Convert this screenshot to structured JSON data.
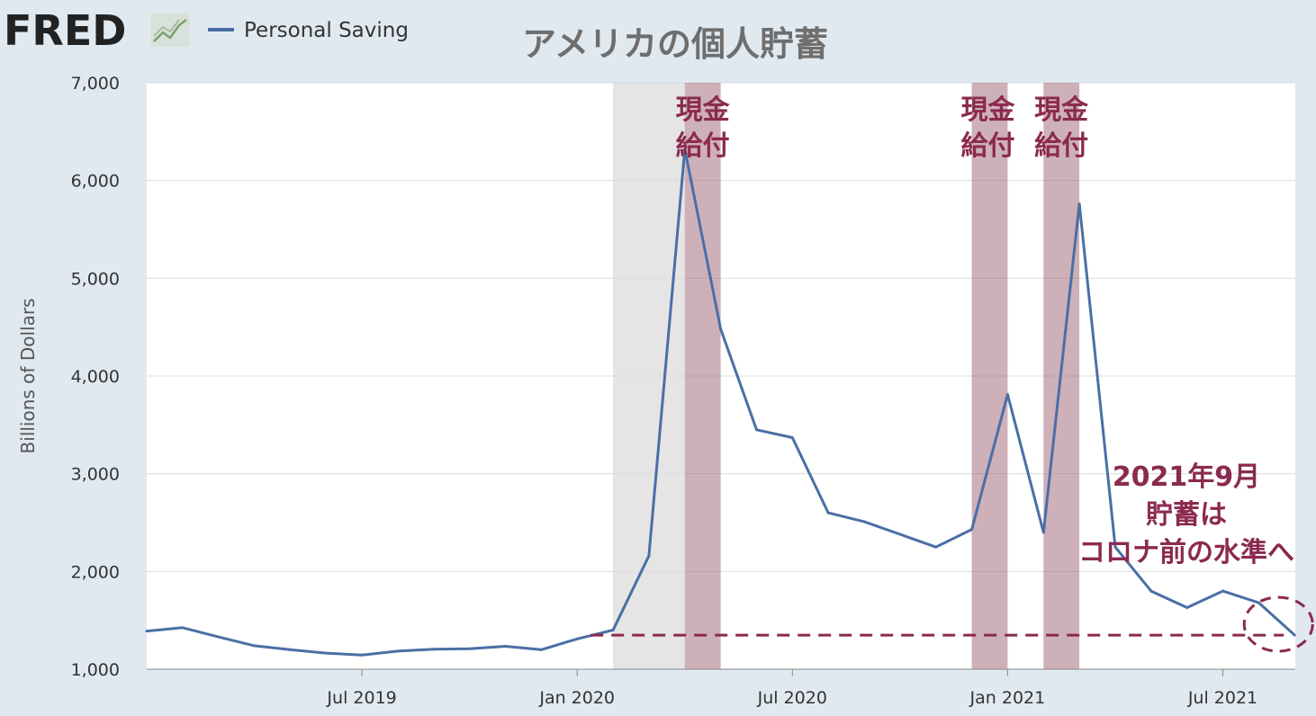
{
  "logo": {
    "text": "FRED"
  },
  "legend": {
    "label": "Personal Saving",
    "color": "#4a6fa5"
  },
  "chart_data": {
    "type": "line",
    "title": "アメリカの個人貯蓄",
    "ylabel": "Billions of Dollars",
    "ylim": [
      1000,
      7000
    ],
    "yticks": [
      1000,
      2000,
      3000,
      4000,
      5000,
      6000,
      7000
    ],
    "ytick_labels": [
      "1,000",
      "2,000",
      "3,000",
      "4,000",
      "5,000",
      "6,000",
      "7,000"
    ],
    "xlim": [
      "2019-01",
      "2021-10"
    ],
    "xticks": [
      "2019-07",
      "2020-01",
      "2020-07",
      "2021-01",
      "2021-07"
    ],
    "xtick_labels": [
      "Jul 2019",
      "Jan 2020",
      "Jul 2020",
      "Jan 2021",
      "Jul 2021"
    ],
    "series": [
      {
        "name": "Personal Saving",
        "color": "#4a6fa5",
        "x": [
          "2019-01",
          "2019-02",
          "2019-03",
          "2019-04",
          "2019-05",
          "2019-06",
          "2019-07",
          "2019-08",
          "2019-09",
          "2019-10",
          "2019-11",
          "2019-12",
          "2020-01",
          "2020-02",
          "2020-03",
          "2020-04",
          "2020-05",
          "2020-06",
          "2020-07",
          "2020-08",
          "2020-09",
          "2020-10",
          "2020-11",
          "2020-12",
          "2021-01",
          "2021-02",
          "2021-03",
          "2021-04",
          "2021-05",
          "2021-06",
          "2021-07",
          "2021-08",
          "2021-09"
        ],
        "values": [
          1390,
          1425,
          1330,
          1240,
          1200,
          1165,
          1145,
          1185,
          1205,
          1210,
          1235,
          1200,
          1310,
          1400,
          2160,
          6320,
          4480,
          3450,
          3370,
          2600,
          2510,
          2380,
          2250,
          2430,
          3810,
          2400,
          5760,
          2250,
          1800,
          1630,
          1800,
          1680,
          1350
        ]
      }
    ],
    "recession_shading": {
      "start": "2020-02",
      "end": "2020-04",
      "color": "#e5e5e5"
    },
    "highlight_bands": [
      {
        "start": "2020-04",
        "end": "2020-05",
        "color": "#a5707f"
      },
      {
        "start": "2020-12",
        "end": "2021-01",
        "color": "#a5707f"
      },
      {
        "start": "2021-02",
        "end": "2021-03",
        "color": "#a5707f"
      }
    ],
    "reference_line": {
      "value": 1330,
      "from": "2020-01",
      "to": "2021-09",
      "color": "#8b2a4f"
    },
    "annotations": [
      {
        "lines": [
          "現金",
          "給付"
        ]
      },
      {
        "lines": [
          "現金",
          "給付"
        ]
      },
      {
        "lines": [
          "現金",
          "給付"
        ]
      },
      {
        "lines": [
          "2021年9月",
          "貯蓄は",
          "コロナ前の水準へ"
        ]
      }
    ],
    "grid": true
  }
}
